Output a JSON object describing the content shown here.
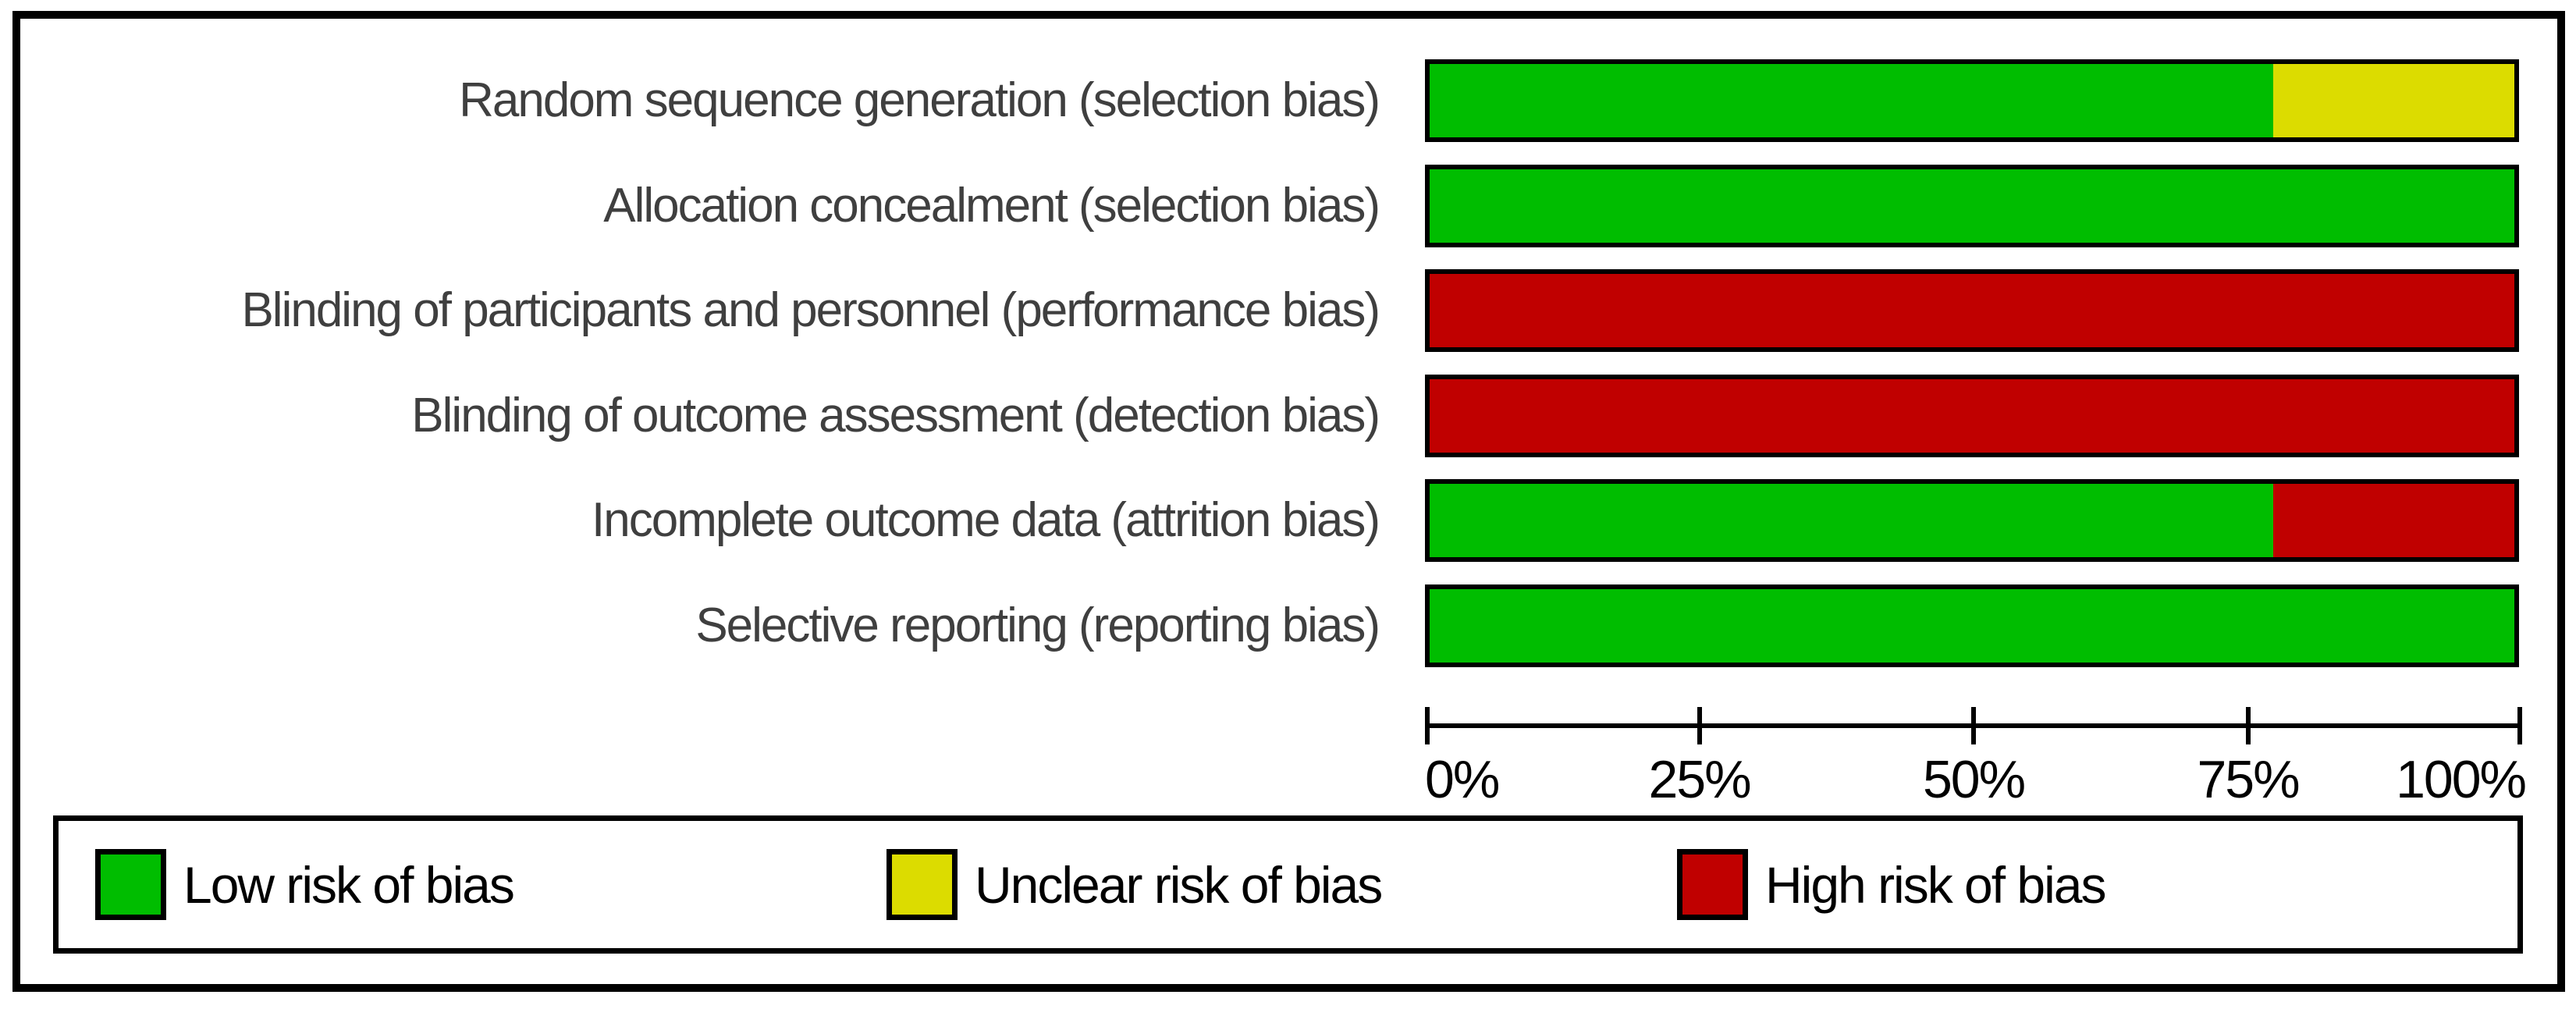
{
  "chart_data": {
    "type": "bar",
    "variant": "horizontal-stacked-percent",
    "title": "",
    "categories": [
      "Random sequence generation (selection bias)",
      "Allocation concealment (selection bias)",
      "Blinding of participants and personnel (performance bias)",
      "Blinding of outcome assessment (detection bias)",
      "Incomplete outcome data (attrition bias)",
      "Selective reporting (reporting bias)"
    ],
    "series": [
      {
        "name": "Low risk of bias",
        "risk": "low",
        "values": [
          77.8,
          100,
          0,
          0,
          77.8,
          100
        ]
      },
      {
        "name": "Unclear risk of bias",
        "risk": "unclear",
        "values": [
          22.2,
          0,
          0,
          0,
          0,
          0
        ]
      },
      {
        "name": "High risk of bias",
        "risk": "high",
        "values": [
          0,
          0,
          100,
          100,
          22.2,
          0
        ]
      }
    ],
    "x_axis": {
      "range": [
        0,
        100
      ],
      "ticks": [
        "0%",
        "25%",
        "50%",
        "75%",
        "100%"
      ]
    },
    "colors": {
      "low": "#00BD00",
      "unclear": "#DCDC00",
      "high": "#C00000",
      "border": "#000000",
      "label_text": "#3f3f3f"
    },
    "legend": [
      {
        "label": "Low risk of bias",
        "risk": "low",
        "color": "#00BD00"
      },
      {
        "label": "Unclear risk of bias",
        "risk": "unclear",
        "color": "#DCDC00"
      },
      {
        "label": "High risk of bias",
        "risk": "high",
        "color": "#C00000"
      }
    ],
    "legend_position": "bottom"
  }
}
